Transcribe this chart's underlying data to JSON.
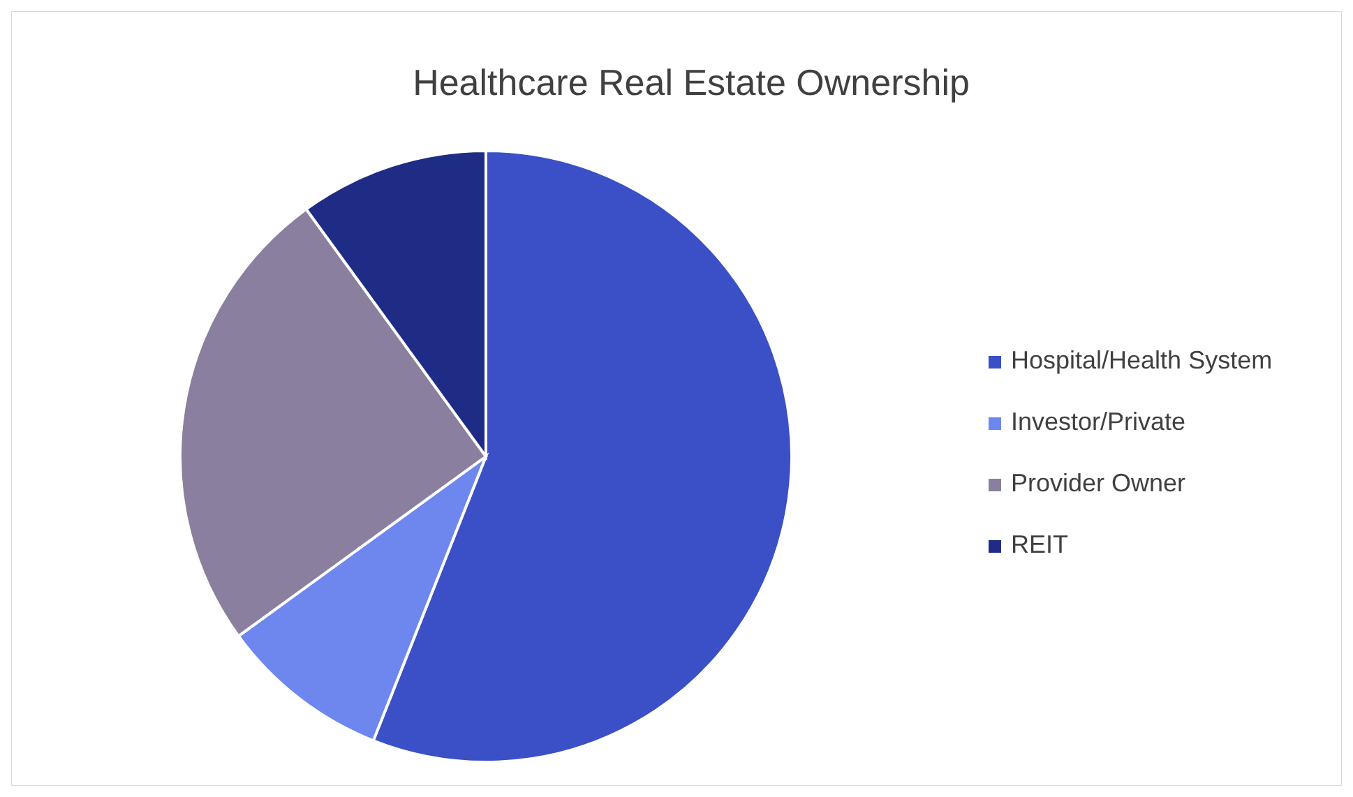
{
  "chart_data": {
    "type": "pie",
    "title": "Healthcare Real Estate Ownership",
    "categories": [
      "Hospital/Health System",
      "Investor/Private",
      "Provider Owner",
      "REIT"
    ],
    "values": [
      56,
      9,
      25,
      10
    ],
    "colors": [
      "#3b4fc6",
      "#6d87ee",
      "#8a7f9e",
      "#1f2c86"
    ],
    "legend": "right"
  }
}
